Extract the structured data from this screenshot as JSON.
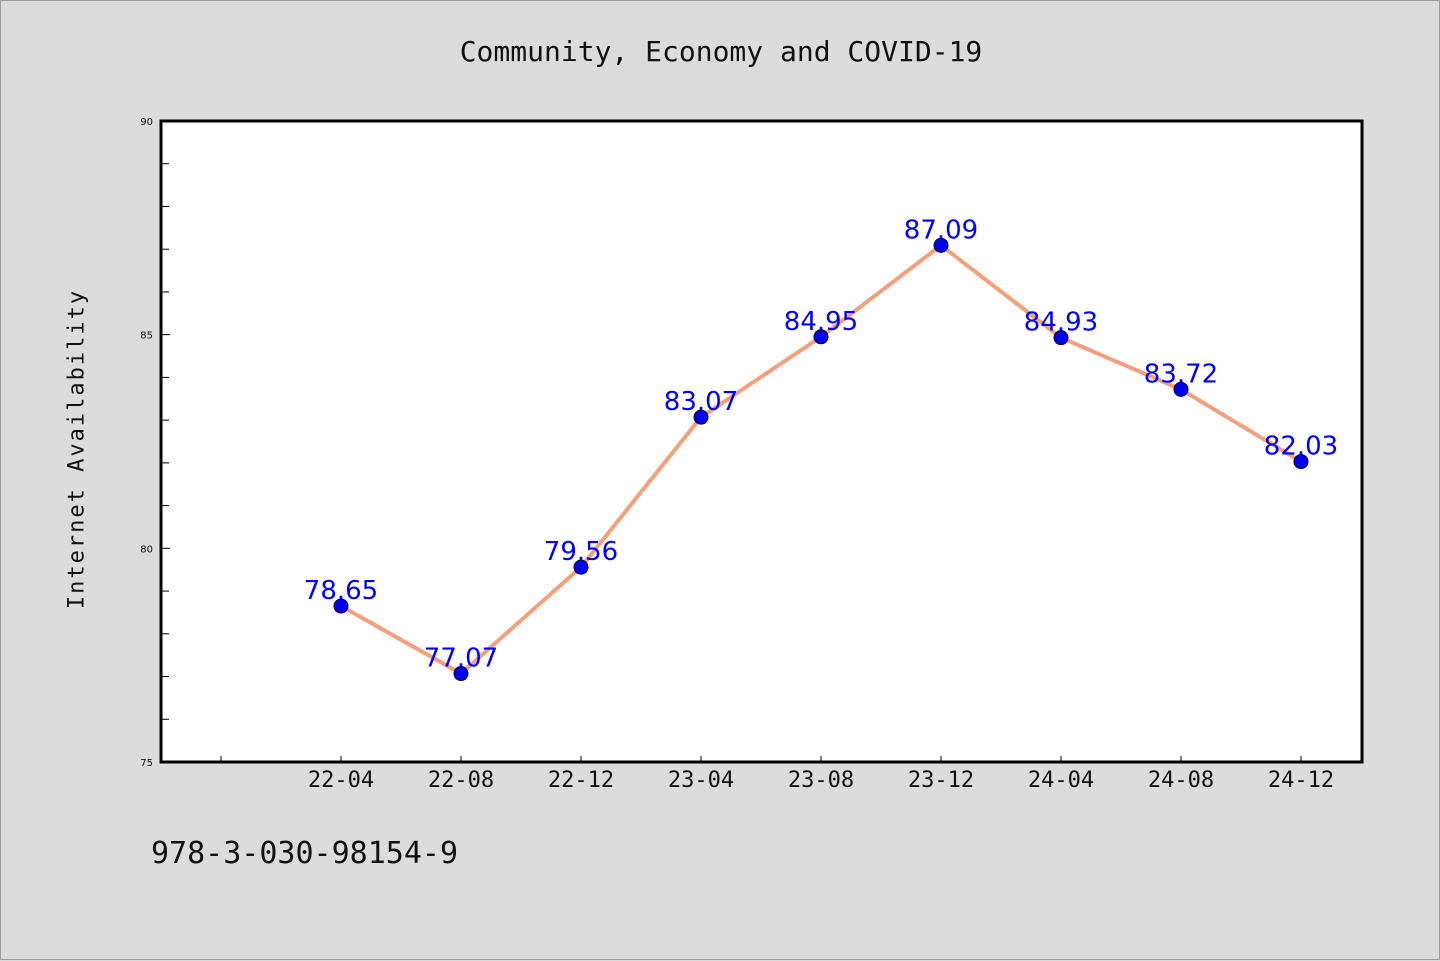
{
  "chart_data": {
    "type": "line",
    "title": "Community, Economy and COVID-19",
    "xlabel": "",
    "ylabel": "Internet Availability",
    "categories": [
      "22-04",
      "22-08",
      "22-12",
      "23-04",
      "23-08",
      "23-12",
      "24-04",
      "24-08",
      "24-12"
    ],
    "series": [
      {
        "values": [
          78.65,
          77.07,
          79.56,
          83.07,
          84.95,
          87.09,
          84.93,
          83.72,
          82.03
        ],
        "labels": [
          "78.65",
          "77.07",
          "79.56",
          "83.07",
          "84.95",
          "87.09",
          "84.93",
          "83.72",
          "82.03"
        ],
        "line_color": "#f4a07a",
        "marker_color": "#0000ee"
      }
    ],
    "ylim": [
      75,
      90
    ],
    "yticks": [
      "75",
      "80",
      "85",
      "90"
    ],
    "grid": false,
    "legend": "none"
  },
  "footer": {
    "text": "978-3-030-98154-9"
  },
  "colors": {
    "background": "#dcdcdc",
    "plot_background": "#ffffff",
    "data_label": "#0000ff"
  }
}
